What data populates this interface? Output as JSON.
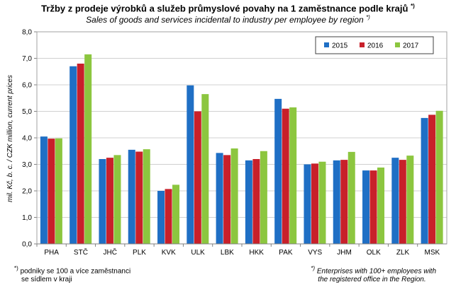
{
  "chart_data": {
    "type": "bar",
    "title": "Tržby z prodeje výrobků a služeb průmyslové povahy na 1 zaměstnance podle krajů",
    "title_sup": "*)",
    "subtitle": "Sales of goods and services incidental to industry per employee by region",
    "subtitle_sup": "*)",
    "ylabel": "mil. Kč, b. c. / CZK million, current prices",
    "ylim": [
      0,
      8
    ],
    "yticks": [
      "0,0",
      "1,0",
      "2,0",
      "3,0",
      "4,0",
      "5,0",
      "6,0",
      "7,0",
      "8,0"
    ],
    "grid": true,
    "legend_position": "top-right",
    "categories": [
      "PHA",
      "STČ",
      "JHČ",
      "PLK",
      "KVK",
      "ULK",
      "LBK",
      "HKK",
      "PAK",
      "VYS",
      "JHM",
      "OLK",
      "ZLK",
      "MSK"
    ],
    "series": [
      {
        "name": "2015",
        "color": "#1f6fc5",
        "values": [
          4.05,
          6.7,
          3.2,
          3.55,
          2.0,
          5.98,
          3.43,
          3.15,
          5.47,
          3.0,
          3.15,
          2.77,
          3.25,
          4.75
        ]
      },
      {
        "name": "2016",
        "color": "#c8202a",
        "values": [
          3.97,
          6.8,
          3.25,
          3.48,
          2.07,
          5.0,
          3.35,
          3.2,
          5.1,
          3.03,
          3.17,
          2.77,
          3.17,
          4.87
        ]
      },
      {
        "name": "2017",
        "color": "#8cc63f",
        "values": [
          3.98,
          7.15,
          3.35,
          3.57,
          2.23,
          5.65,
          3.6,
          3.5,
          5.15,
          3.1,
          3.47,
          2.88,
          3.33,
          5.02
        ]
      }
    ]
  },
  "notes": {
    "cz_mark": "*)",
    "cz_line1": "podniky se 100 a více zaměstnanci",
    "cz_line2": "se sídlem v kraji",
    "en_mark": "*)",
    "en_line1": "Enterprises with 100+ employees with",
    "en_line2": "the registered office in the Region."
  }
}
